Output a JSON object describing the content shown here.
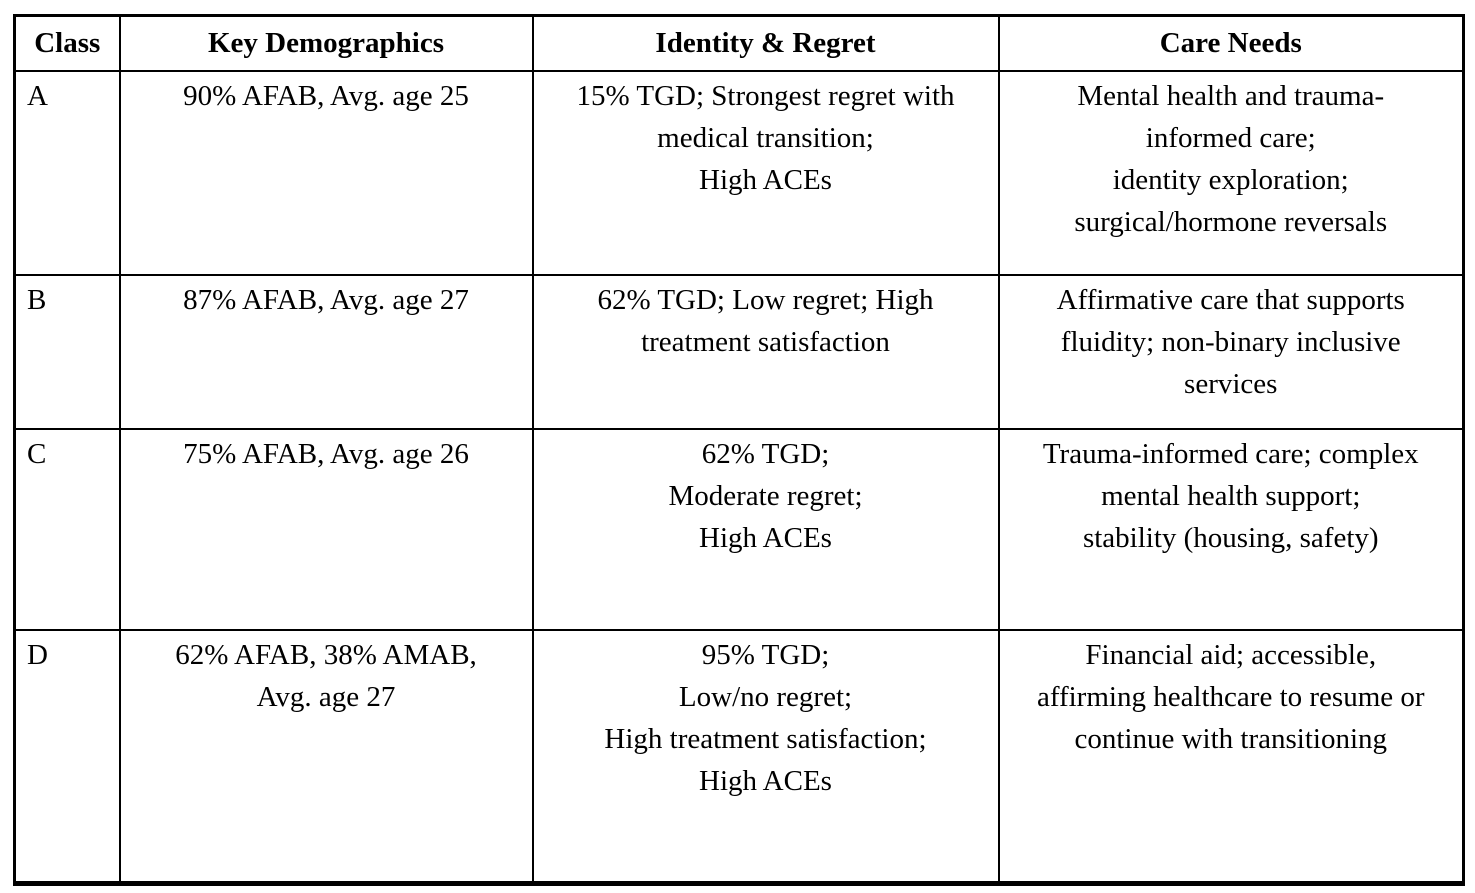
{
  "colors": {
    "text": "#000000",
    "border": "#000000",
    "background": "#ffffff"
  },
  "table": {
    "headers": [
      "Class",
      "Key Demographics",
      "Identity & Regret",
      "Care Needs"
    ],
    "rows": [
      {
        "class": "A",
        "demographics": "90% AFAB, Avg. age 25",
        "identity": "15% TGD; Strongest regret with\nmedical transition;\nHigh ACEs",
        "care": "Mental health and trauma-\ninformed care;\nidentity exploration;\nsurgical/hormone reversals"
      },
      {
        "class": "B",
        "demographics": "87% AFAB, Avg. age 27",
        "identity": "62% TGD; Low regret; High\ntreatment satisfaction",
        "care": "Affirmative care that supports\nfluidity; non-binary inclusive\nservices"
      },
      {
        "class": "C",
        "demographics": "75% AFAB, Avg. age 26",
        "identity": "62% TGD;\nModerate regret;\nHigh ACEs",
        "care": "Trauma-informed care; complex\nmental health support;\nstability (housing, safety)"
      },
      {
        "class": "D",
        "demographics": "62% AFAB, 38% AMAB,\nAvg. age 27",
        "identity": "95% TGD;\nLow/no regret;\nHigh treatment satisfaction;\nHigh ACEs",
        "care": "Financial aid; accessible,\naffirming healthcare to resume or\ncontinue with transitioning"
      }
    ]
  }
}
